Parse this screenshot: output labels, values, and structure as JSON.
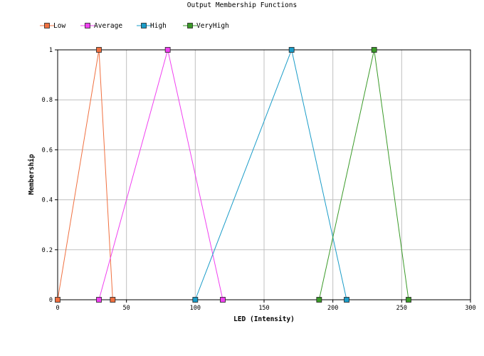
{
  "chart_data": {
    "type": "line",
    "title": "Output Membership Functions",
    "xlabel": "LED (Intensity)",
    "ylabel": "Membership",
    "xlim": [
      0,
      300
    ],
    "ylim": [
      0,
      1
    ],
    "xticks": [
      0,
      50,
      100,
      150,
      200,
      250,
      300
    ],
    "yticks": [
      0,
      0.2,
      0.4,
      0.6,
      0.8,
      1
    ],
    "xtick_labels": [
      "0",
      "50",
      "100",
      "150",
      "200",
      "250",
      "300"
    ],
    "ytick_labels": [
      "0",
      "0.2",
      "0.4",
      "0.6",
      "0.8",
      "1"
    ],
    "grid": true,
    "legend_position": "top-left",
    "series": [
      {
        "name": "Low",
        "color": "#f07040",
        "points": [
          [
            0,
            0
          ],
          [
            30,
            1
          ],
          [
            40,
            0
          ]
        ]
      },
      {
        "name": "Average",
        "color": "#f040f0",
        "points": [
          [
            30,
            0
          ],
          [
            80,
            1
          ],
          [
            120,
            0
          ]
        ]
      },
      {
        "name": "High",
        "color": "#1a9cc8",
        "points": [
          [
            100,
            0
          ],
          [
            170,
            1
          ],
          [
            210,
            0
          ]
        ]
      },
      {
        "name": "VeryHigh",
        "color": "#3a9a28",
        "points": [
          [
            190,
            0
          ],
          [
            230,
            1
          ],
          [
            255,
            0
          ]
        ]
      }
    ]
  }
}
